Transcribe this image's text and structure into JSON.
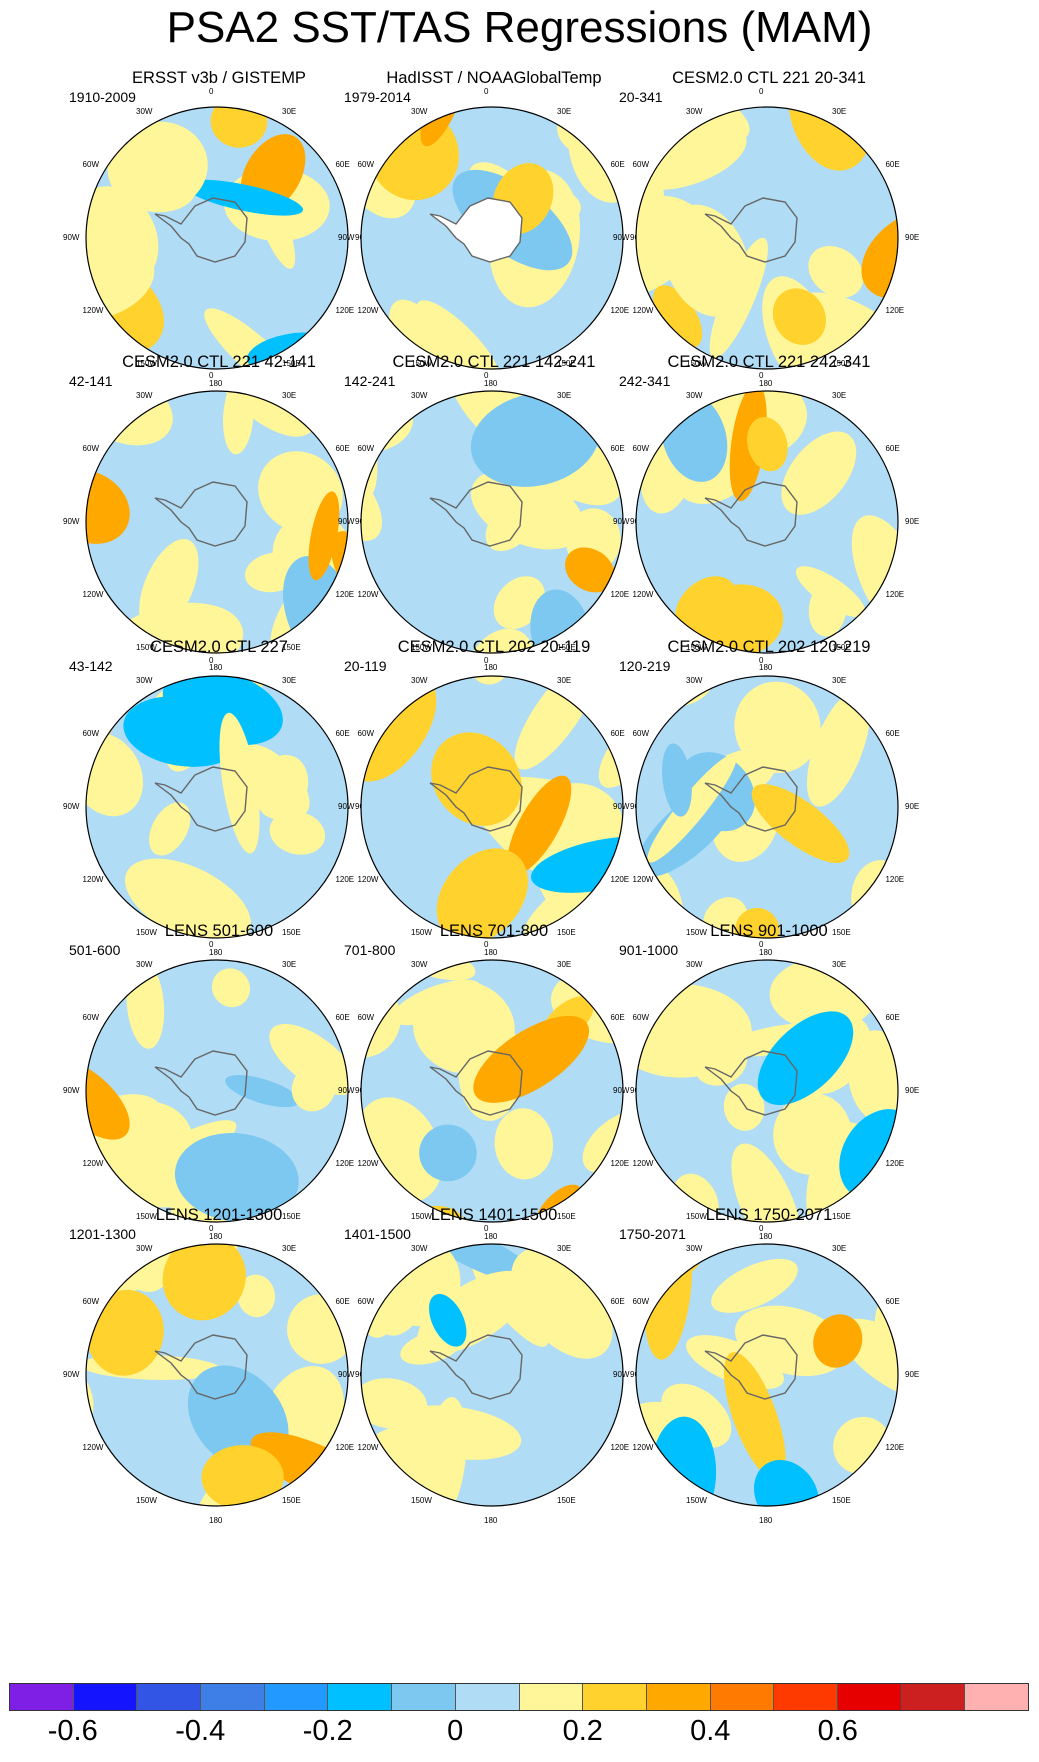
{
  "title": "PSA2 SST/TAS Regressions (MAM)",
  "panels": [
    {
      "title": "ERSST v3b / GISTEMP",
      "range": "1910-2009"
    },
    {
      "title": "HadISST / NOAAGlobalTemp",
      "range": "1979-2014"
    },
    {
      "title": "CESM2.0 CTL 221 20-341",
      "range": "20-341"
    },
    {
      "title": "CESM2.0 CTL 221 42-141",
      "range": "42-141"
    },
    {
      "title": "CESM2.0 CTL 221 142-241",
      "range": "142-241"
    },
    {
      "title": "CESM2.0 CTL 221 242-341",
      "range": "242-341"
    },
    {
      "title": "CESM2.0 CTL 227",
      "range": "43-142"
    },
    {
      "title": "CESM2.0 CTL 202 20-119",
      "range": "20-119"
    },
    {
      "title": "CESM2.0 CTL 202 120-219",
      "range": "120-219"
    },
    {
      "title": "LENS 501-600",
      "range": "501-600"
    },
    {
      "title": "LENS 701-800",
      "range": "701-800"
    },
    {
      "title": "LENS 901-1000",
      "range": "901-1000"
    },
    {
      "title": "LENS 1201-1300",
      "range": "1201-1300"
    },
    {
      "title": "LENS 1401-1500",
      "range": "1401-1500"
    },
    {
      "title": "LENS 1750-2071",
      "range": "1750-2071"
    }
  ],
  "longitude_labels": [
    "0",
    "30E",
    "60E",
    "90E",
    "120E",
    "150E",
    "180",
    "150W",
    "120W",
    "90W",
    "60W",
    "30W"
  ],
  "colorbar": {
    "colors": [
      "#7f1fe6",
      "#1414ff",
      "#3355e6",
      "#3d7fe6",
      "#2299ff",
      "#00c0ff",
      "#7cc8f0",
      "#b0dcf5",
      "#fff599",
      "#ffd22d",
      "#ffa800",
      "#ff7a00",
      "#ff3a00",
      "#e60000",
      "#cc1f1f",
      "#ffb0b0"
    ],
    "tick_labels": [
      "-0.6",
      "-0.4",
      "-0.2",
      "0",
      "0.2",
      "0.4",
      "0.6"
    ]
  },
  "chart_data": {
    "type": "heatmap",
    "title": "PSA2 SST/TAS Regressions (MAM)",
    "projection": "south-polar-stereographic",
    "color_levels": [
      -0.7,
      -0.6,
      -0.5,
      -0.4,
      -0.3,
      -0.2,
      -0.1,
      0,
      0.1,
      0.2,
      0.3,
      0.4,
      0.5,
      0.6,
      0.7
    ],
    "colorbar_ticks": [
      -0.6,
      -0.4,
      -0.2,
      0,
      0.2,
      0.4,
      0.6
    ],
    "panel_count": 15
  }
}
